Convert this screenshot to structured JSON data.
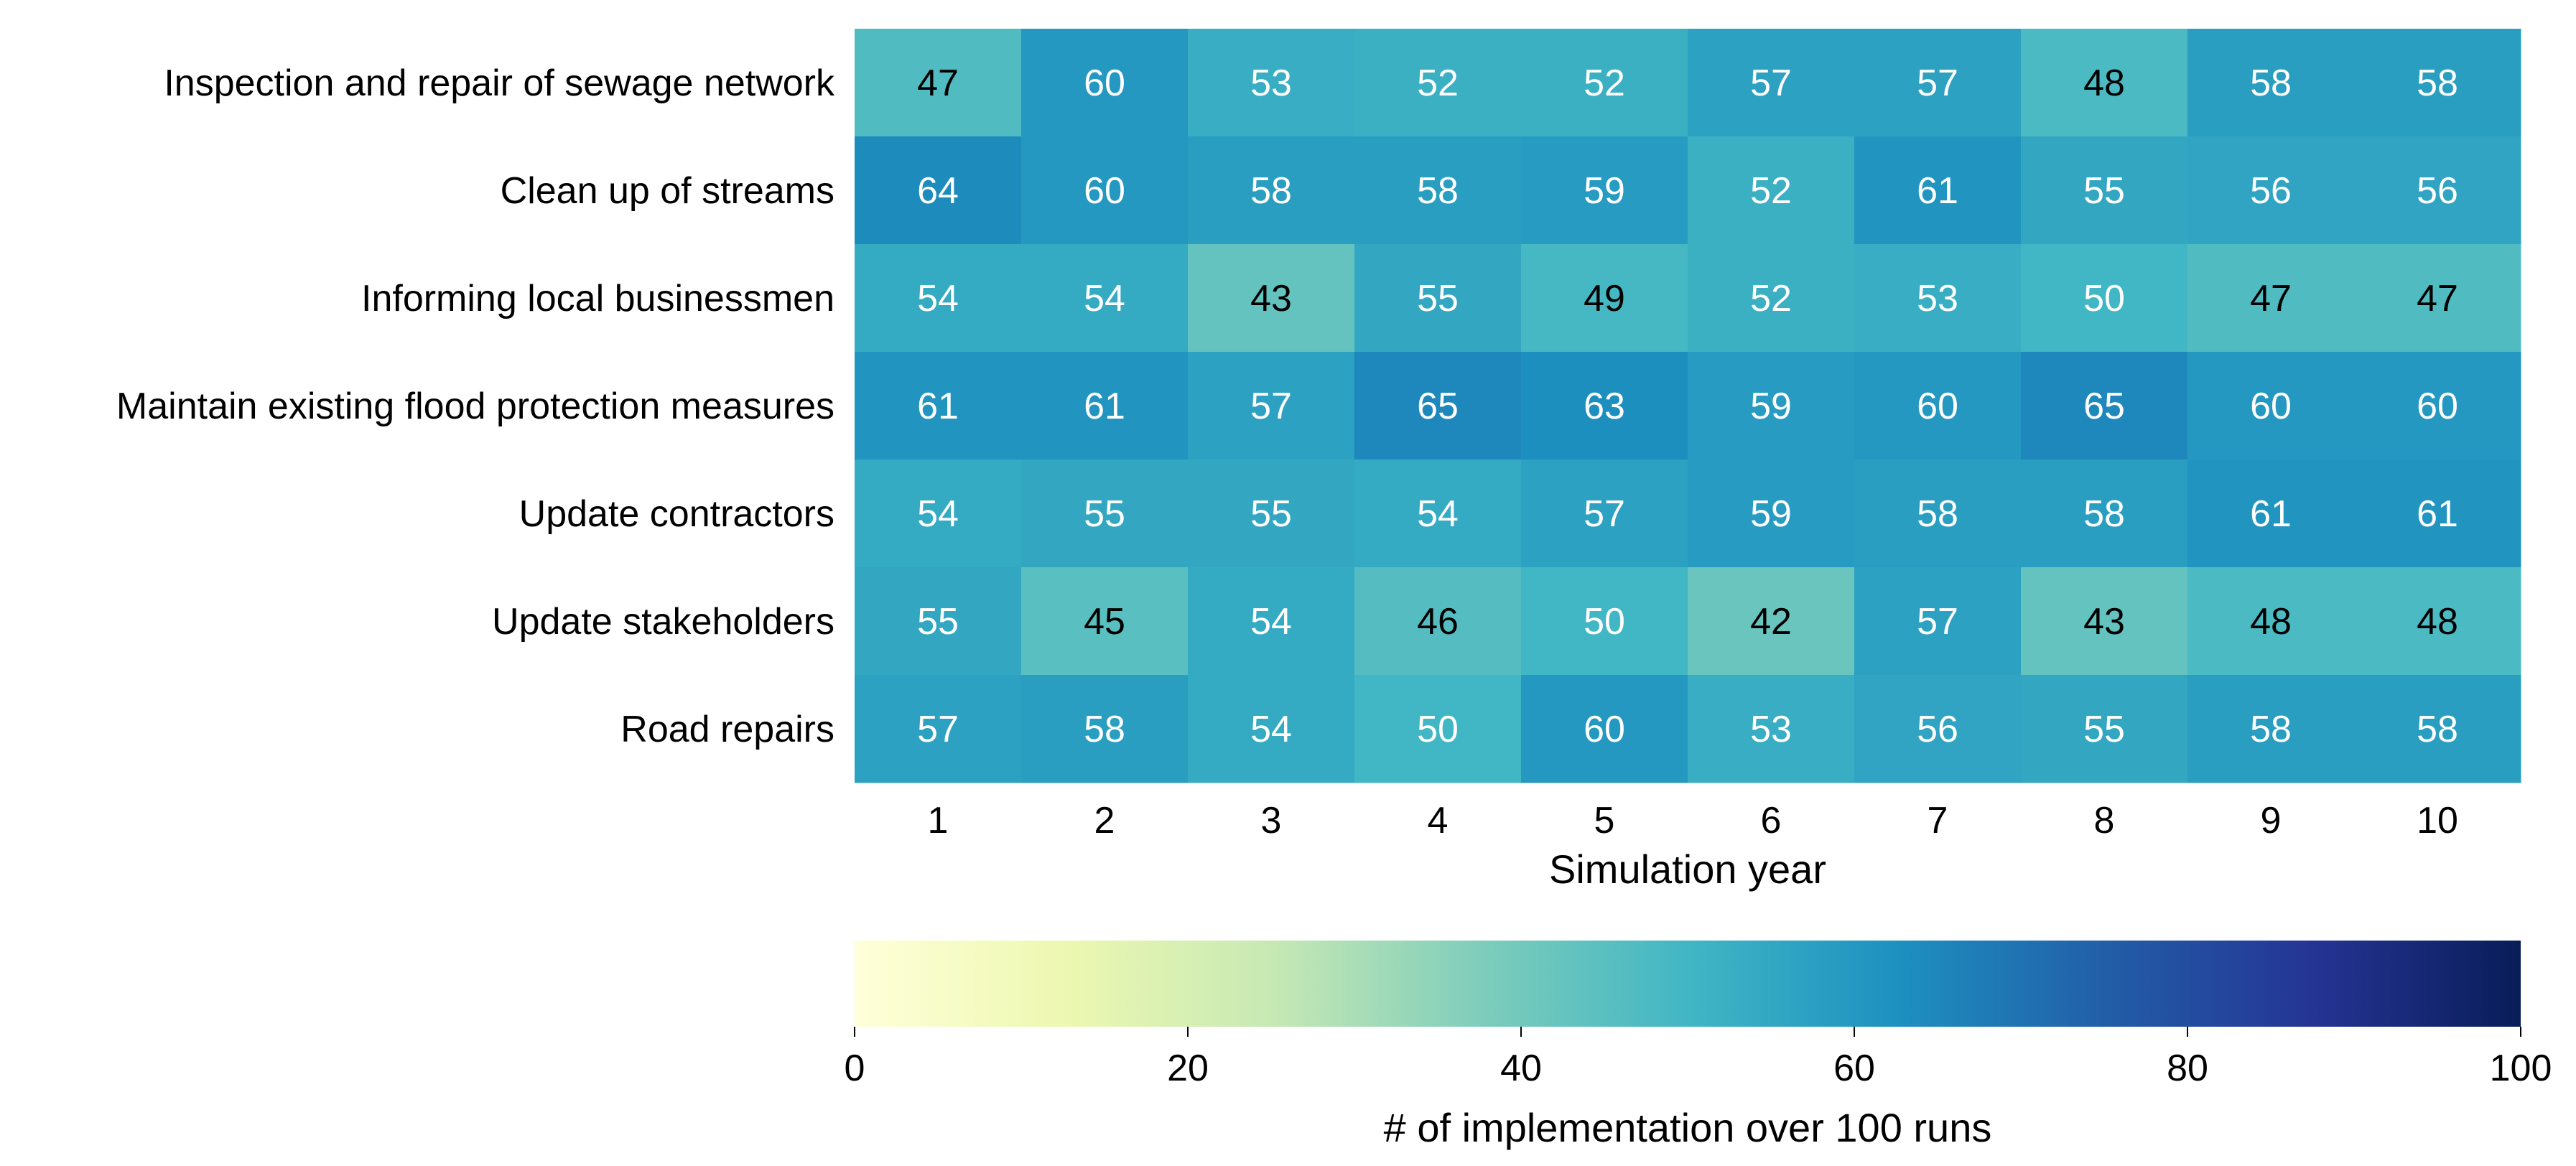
{
  "chart_data": {
    "type": "heatmap",
    "title": "",
    "xlabel": "Simulation year",
    "ylabel": "",
    "x_categories": [
      "1",
      "2",
      "3",
      "4",
      "5",
      "6",
      "7",
      "8",
      "9",
      "10"
    ],
    "y_categories": [
      "Inspection and repair of sewage network",
      "Clean up of streams",
      "Informing local businessmen",
      "Maintain existing flood protection measures",
      "Update contractors",
      "Update stakeholders",
      "Road repairs"
    ],
    "values": [
      [
        47,
        60,
        53,
        52,
        52,
        57,
        57,
        48,
        58,
        58
      ],
      [
        64,
        60,
        58,
        58,
        59,
        52,
        61,
        55,
        56,
        56
      ],
      [
        54,
        54,
        43,
        55,
        49,
        52,
        53,
        50,
        47,
        47
      ],
      [
        61,
        61,
        57,
        65,
        63,
        59,
        60,
        65,
        60,
        60
      ],
      [
        54,
        55,
        55,
        54,
        57,
        59,
        58,
        58,
        61,
        61
      ],
      [
        55,
        45,
        54,
        46,
        50,
        42,
        57,
        43,
        48,
        48
      ],
      [
        57,
        58,
        54,
        50,
        60,
        53,
        56,
        55,
        58,
        58
      ]
    ],
    "colorbar": {
      "label": "# of implementation over 100 runs",
      "range": [
        0,
        100
      ],
      "ticks": [
        "0",
        "20",
        "40",
        "60",
        "80",
        "100"
      ],
      "orientation": "horizontal",
      "colormap": "YlGnBu"
    },
    "colors": {
      "dark_text": "#000000",
      "light_text": "#ffffff",
      "gradient_stops": [
        "#ffffd9",
        "#edf8b1",
        "#c7e9b4",
        "#7fcdbb",
        "#41b6c4",
        "#1d91c0",
        "#225ea8",
        "#253494",
        "#081d58"
      ]
    }
  }
}
